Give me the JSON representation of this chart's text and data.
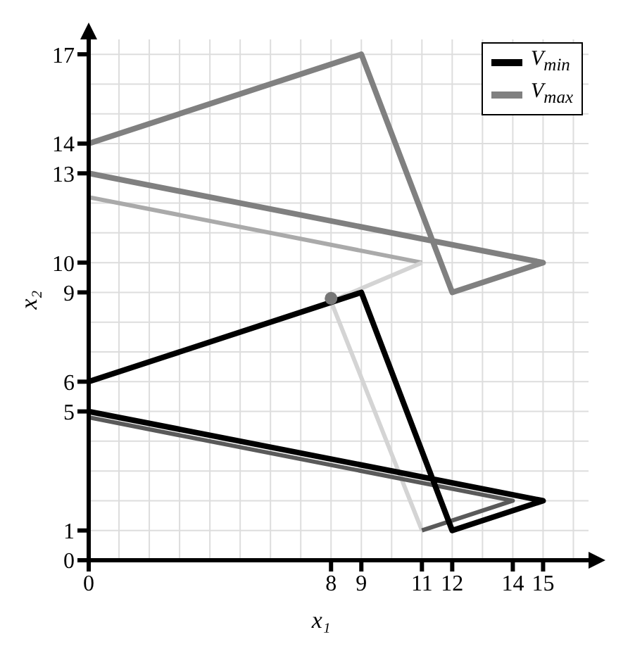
{
  "chart_data": {
    "type": "line",
    "xlabel": "x₁",
    "ylabel": "x₂",
    "xlim": [
      0,
      16.5
    ],
    "ylim": [
      0,
      17.5
    ],
    "xticks": [
      0,
      8,
      9,
      11,
      12,
      14,
      15
    ],
    "yticks": [
      0,
      1,
      5,
      6,
      9,
      10,
      13,
      14,
      17
    ],
    "grid": true,
    "legend": "top right",
    "marker": "none",
    "line_style": "solid",
    "series": [
      {
        "color": "#aaaaaa",
        "x": [
          11,
          0
        ],
        "values": [
          10,
          12.2
        ]
      },
      {
        "color": "#d4d4d4",
        "x": [
          11,
          8,
          11
        ],
        "values": [
          1,
          8.7,
          10
        ]
      },
      {
        "color": "#5a5a5a",
        "x": [
          0,
          14,
          11
        ],
        "values": [
          4.8,
          2,
          1
        ]
      },
      {
        "name": "V$_{min}$",
        "color": "#000000",
        "x": [
          0,
          9,
          12,
          15,
          0
        ],
        "values": [
          6,
          9,
          1,
          2,
          5
        ]
      },
      {
        "name": "V$_{max}$",
        "color": "#808080",
        "x": [
          0,
          9,
          12,
          15,
          0
        ],
        "values": [
          14,
          17,
          9,
          10,
          13
        ]
      },
      {
        "type": "scatter",
        "marker": "circle",
        "color": "#777777",
        "x": [
          8
        ],
        "values": [
          8.8
        ]
      }
    ]
  }
}
